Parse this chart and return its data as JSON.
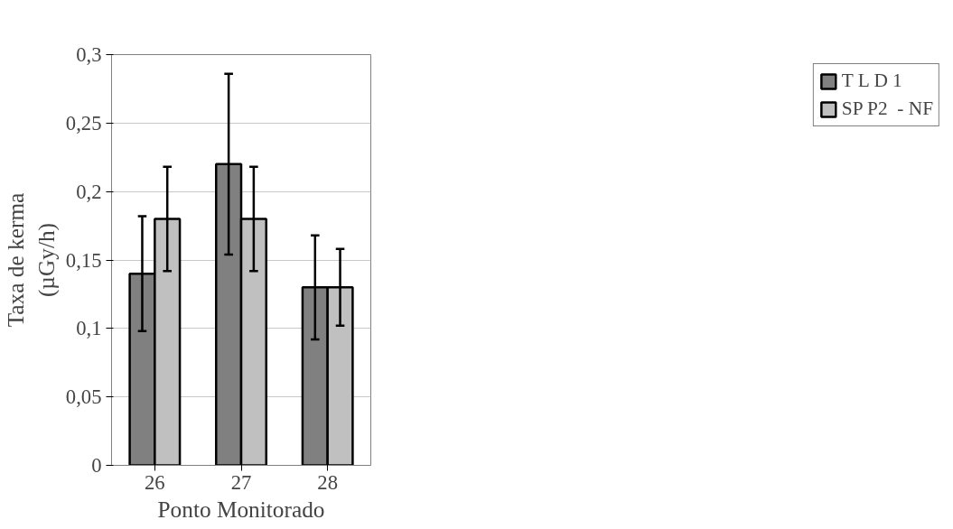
{
  "chart_data": {
    "type": "bar",
    "xlabel": "Ponto Monitorado",
    "ylabel": "Taxa de kerma\n(µGy/h)",
    "categories": [
      "26",
      "27",
      "28"
    ],
    "series": [
      {
        "name": "T L D 1",
        "color": "#808080",
        "values": [
          0.14,
          0.22,
          0.13
        ],
        "errors": [
          0.042,
          0.066,
          0.038
        ]
      },
      {
        "name": "SP P2  - NF",
        "color": "#c0c0c0",
        "values": [
          0.18,
          0.18,
          0.13
        ],
        "errors": [
          0.038,
          0.038,
          0.028
        ]
      }
    ],
    "ylim": [
      0,
      0.3
    ],
    "yticks": [
      {
        "value": 0,
        "label": "0"
      },
      {
        "value": 0.05,
        "label": "0,05"
      },
      {
        "value": 0.1,
        "label": "0,1"
      },
      {
        "value": 0.15,
        "label": "0,15"
      },
      {
        "value": 0.2,
        "label": "0,2"
      },
      {
        "value": 0.25,
        "label": "0,25"
      },
      {
        "value": 0.3,
        "label": "0,3"
      }
    ],
    "grid": "y",
    "legend": "right"
  }
}
